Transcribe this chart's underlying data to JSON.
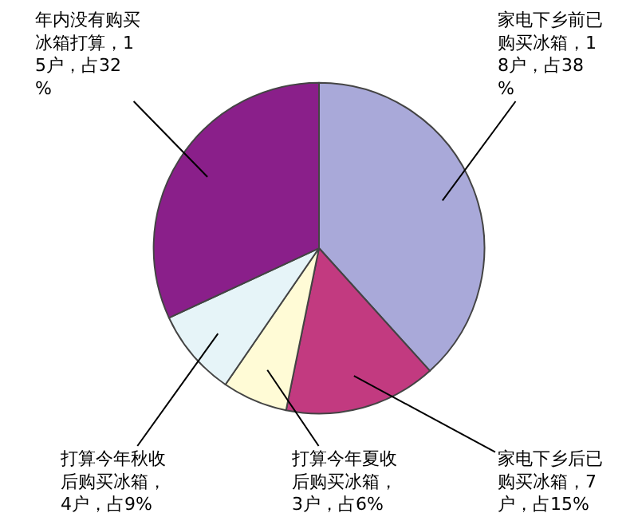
{
  "chart_data": {
    "type": "pie",
    "categories": [
      "家电下乡前已购买冰箱，18户，占38%",
      "家电下乡后已购买冰箱，7户，占15%",
      "打算今年夏收后购买冰箱，3户，占6%",
      "打算今年秋收后购买冰箱，4户，占9%",
      "年内没有购买冰箱打算，15户，占32%"
    ],
    "values": [
      18,
      7,
      3,
      4,
      15
    ],
    "colors": [
      "#a9a9d9",
      "#c23a80",
      "#fffbd6",
      "#e6f4f8",
      "#8a1f8a"
    ],
    "legend": false
  }
}
